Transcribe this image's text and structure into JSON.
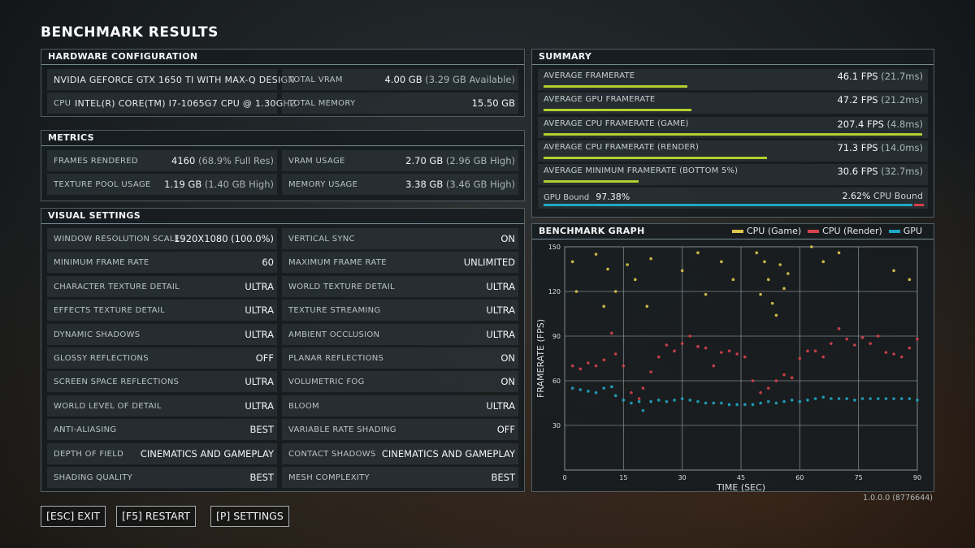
{
  "title": "BENCHMARK RESULTS",
  "hardware": {
    "header": "HARDWARE CONFIGURATION",
    "gpu": "NVIDIA GEFORCE GTX 1650 TI WITH MAX-Q DESIGN",
    "vram_label": "TOTAL VRAM",
    "vram_value": "4.00 GB",
    "vram_avail": "(3.29 GB Available)",
    "cpu_label": "CPU",
    "cpu_value": "INTEL(R) CORE(TM) I7-1065G7 CPU @ 1.30GHZ",
    "mem_label": "TOTAL MEMORY",
    "mem_value": "15.50 GB"
  },
  "metrics": {
    "header": "METRICS",
    "frames_label": "FRAMES RENDERED",
    "frames_value": "4160",
    "frames_extra": "(68.9% Full Res)",
    "vram_label": "VRAM USAGE",
    "vram_value": "2.70 GB",
    "vram_extra": "(2.96 GB High)",
    "texpool_label": "TEXTURE POOL USAGE",
    "texpool_value": "1.19 GB",
    "texpool_extra": "(1.40 GB High)",
    "mem_label": "MEMORY USAGE",
    "mem_value": "3.38 GB",
    "mem_extra": "(3.46 GB High)"
  },
  "visual": {
    "header": "VISUAL SETTINGS",
    "rows": [
      {
        "l_label": "WINDOW RESOLUTION SCALE",
        "l_value": "1920X1080 (100.0%)",
        "r_label": "VERTICAL SYNC",
        "r_value": "ON"
      },
      {
        "l_label": "MINIMUM FRAME RATE",
        "l_value": "60",
        "r_label": "MAXIMUM FRAME RATE",
        "r_value": "UNLIMITED"
      },
      {
        "l_label": "CHARACTER TEXTURE DETAIL",
        "l_value": "ULTRA",
        "r_label": "WORLD TEXTURE DETAIL",
        "r_value": "ULTRA"
      },
      {
        "l_label": "EFFECTS TEXTURE DETAIL",
        "l_value": "ULTRA",
        "r_label": "TEXTURE STREAMING",
        "r_value": "ULTRA"
      },
      {
        "l_label": "DYNAMIC SHADOWS",
        "l_value": "ULTRA",
        "r_label": "AMBIENT OCCLUSION",
        "r_value": "ULTRA"
      },
      {
        "l_label": "GLOSSY REFLECTIONS",
        "l_value": "OFF",
        "r_label": "PLANAR REFLECTIONS",
        "r_value": "ON"
      },
      {
        "l_label": "SCREEN SPACE REFLECTIONS",
        "l_value": "ULTRA",
        "r_label": "VOLUMETRIC FOG",
        "r_value": "ON"
      },
      {
        "l_label": "WORLD LEVEL OF DETAIL",
        "l_value": "ULTRA",
        "r_label": "BLOOM",
        "r_value": "ULTRA"
      },
      {
        "l_label": "ANTI-ALIASING",
        "l_value": "BEST",
        "r_label": "VARIABLE RATE SHADING",
        "r_value": "OFF"
      },
      {
        "l_label": "DEPTH OF FIELD",
        "l_value": "CINEMATICS AND GAMEPLAY",
        "r_label": "CONTACT SHADOWS",
        "r_value": "CINEMATICS AND GAMEPLAY"
      },
      {
        "l_label": "SHADING QUALITY",
        "l_value": "BEST",
        "r_label": "MESH COMPLEXITY",
        "r_value": "BEST"
      }
    ]
  },
  "summary": {
    "header": "SUMMARY",
    "rows": [
      {
        "label": "AVERAGE FRAMERATE",
        "fps": "46.1 FPS",
        "ms": "(21.7ms)",
        "bar": 0.38
      },
      {
        "label": "AVERAGE GPU FRAMERATE",
        "fps": "47.2 FPS",
        "ms": "(21.2ms)",
        "bar": 0.39
      },
      {
        "label": "AVERAGE CPU FRAMERATE (GAME)",
        "fps": "207.4 FPS",
        "ms": "(4.8ms)",
        "bar": 1.0
      },
      {
        "label": "AVERAGE CPU FRAMERATE (RENDER)",
        "fps": "71.3 FPS",
        "ms": "(14.0ms)",
        "bar": 0.59
      },
      {
        "label": "AVERAGE MINIMUM FRAMERATE (BOTTOM 5%)",
        "fps": "30.6 FPS",
        "ms": "(32.7ms)",
        "bar": 0.25
      }
    ],
    "bound": {
      "gpu_label": "GPU Bound",
      "gpu_value": "97.38%",
      "cpu_value": "2.62%",
      "cpu_label": "CPU Bound",
      "gpu_fraction": 0.9738
    },
    "colors": {
      "bar": "#b3cf2e",
      "gpu": "#1fa7c4",
      "cpu": "#d8414b"
    }
  },
  "graph": {
    "header": "BENCHMARK GRAPH",
    "legend": [
      {
        "name": "CPU (Game)",
        "color": "#e0c54a"
      },
      {
        "name": "CPU (Render)",
        "color": "#d8414b"
      },
      {
        "name": "GPU",
        "color": "#1fa7c4"
      }
    ]
  },
  "chart_data": {
    "type": "scatter",
    "title": "BENCHMARK GRAPH",
    "xlabel": "TIME (SEC)",
    "ylabel": "FRAMERATE (FPS)",
    "xlim": [
      0,
      90
    ],
    "ylim": [
      0,
      150
    ],
    "x_ticks": [
      "0",
      "15",
      "30",
      "45",
      "60",
      "75",
      "90"
    ],
    "y_ticks": [
      "30",
      "60",
      "90",
      "120",
      "150"
    ],
    "grid": true,
    "legend_position": "top-right",
    "series": [
      {
        "name": "CPU (Game)",
        "color": "#e0c54a",
        "x": [
          2,
          3,
          8,
          10,
          11,
          13,
          16,
          18,
          21,
          22,
          30,
          34,
          36,
          40,
          43,
          49,
          50,
          51,
          52,
          53,
          54,
          55,
          56,
          57,
          63,
          66,
          70,
          84,
          88
        ],
        "y": [
          140,
          120,
          145,
          110,
          135,
          120,
          138,
          128,
          110,
          142,
          134,
          146,
          118,
          140,
          128,
          146,
          118,
          140,
          128,
          112,
          104,
          138,
          122,
          132,
          150,
          140,
          146,
          134,
          128
        ]
      },
      {
        "name": "CPU (Render)",
        "color": "#d8414b",
        "x": [
          2,
          4,
          6,
          8,
          10,
          12,
          13,
          15,
          17,
          19,
          20,
          22,
          24,
          26,
          28,
          30,
          32,
          34,
          36,
          38,
          40,
          42,
          44,
          46,
          48,
          50,
          52,
          54,
          56,
          58,
          60,
          62,
          64,
          66,
          68,
          70,
          72,
          74,
          76,
          78,
          80,
          82,
          84,
          86,
          88,
          90
        ],
        "y": [
          70,
          68,
          72,
          70,
          74,
          92,
          78,
          70,
          52,
          48,
          55,
          66,
          76,
          84,
          80,
          85,
          90,
          83,
          82,
          70,
          79,
          80,
          78,
          76,
          60,
          52,
          55,
          60,
          64,
          62,
          75,
          80,
          80,
          76,
          85,
          95,
          88,
          84,
          89,
          85,
          90,
          79,
          78,
          76,
          82,
          88
        ]
      },
      {
        "name": "GPU",
        "color": "#1fa7c4",
        "x": [
          2,
          4,
          6,
          8,
          10,
          12,
          13,
          15,
          17,
          19,
          20,
          22,
          24,
          26,
          28,
          30,
          32,
          34,
          36,
          38,
          40,
          42,
          44,
          46,
          48,
          50,
          52,
          54,
          56,
          58,
          60,
          62,
          64,
          66,
          68,
          70,
          72,
          74,
          76,
          78,
          80,
          82,
          84,
          86,
          88,
          90
        ],
        "y": [
          55,
          54,
          53,
          52,
          55,
          56,
          50,
          47,
          45,
          46,
          40,
          46,
          47,
          46,
          47,
          48,
          47,
          46,
          45,
          45,
          45,
          44,
          44,
          44,
          44,
          45,
          46,
          45,
          46,
          47,
          46,
          47,
          48,
          49,
          48,
          48,
          48,
          47,
          48,
          48,
          48,
          48,
          48,
          48,
          48,
          47
        ]
      }
    ]
  },
  "footer": {
    "version": "1.0.0.0 (8776644)",
    "buttons": {
      "exit": "[ESC] EXIT",
      "restart": "[F5] RESTART",
      "settings": "[P] SETTINGS"
    }
  }
}
